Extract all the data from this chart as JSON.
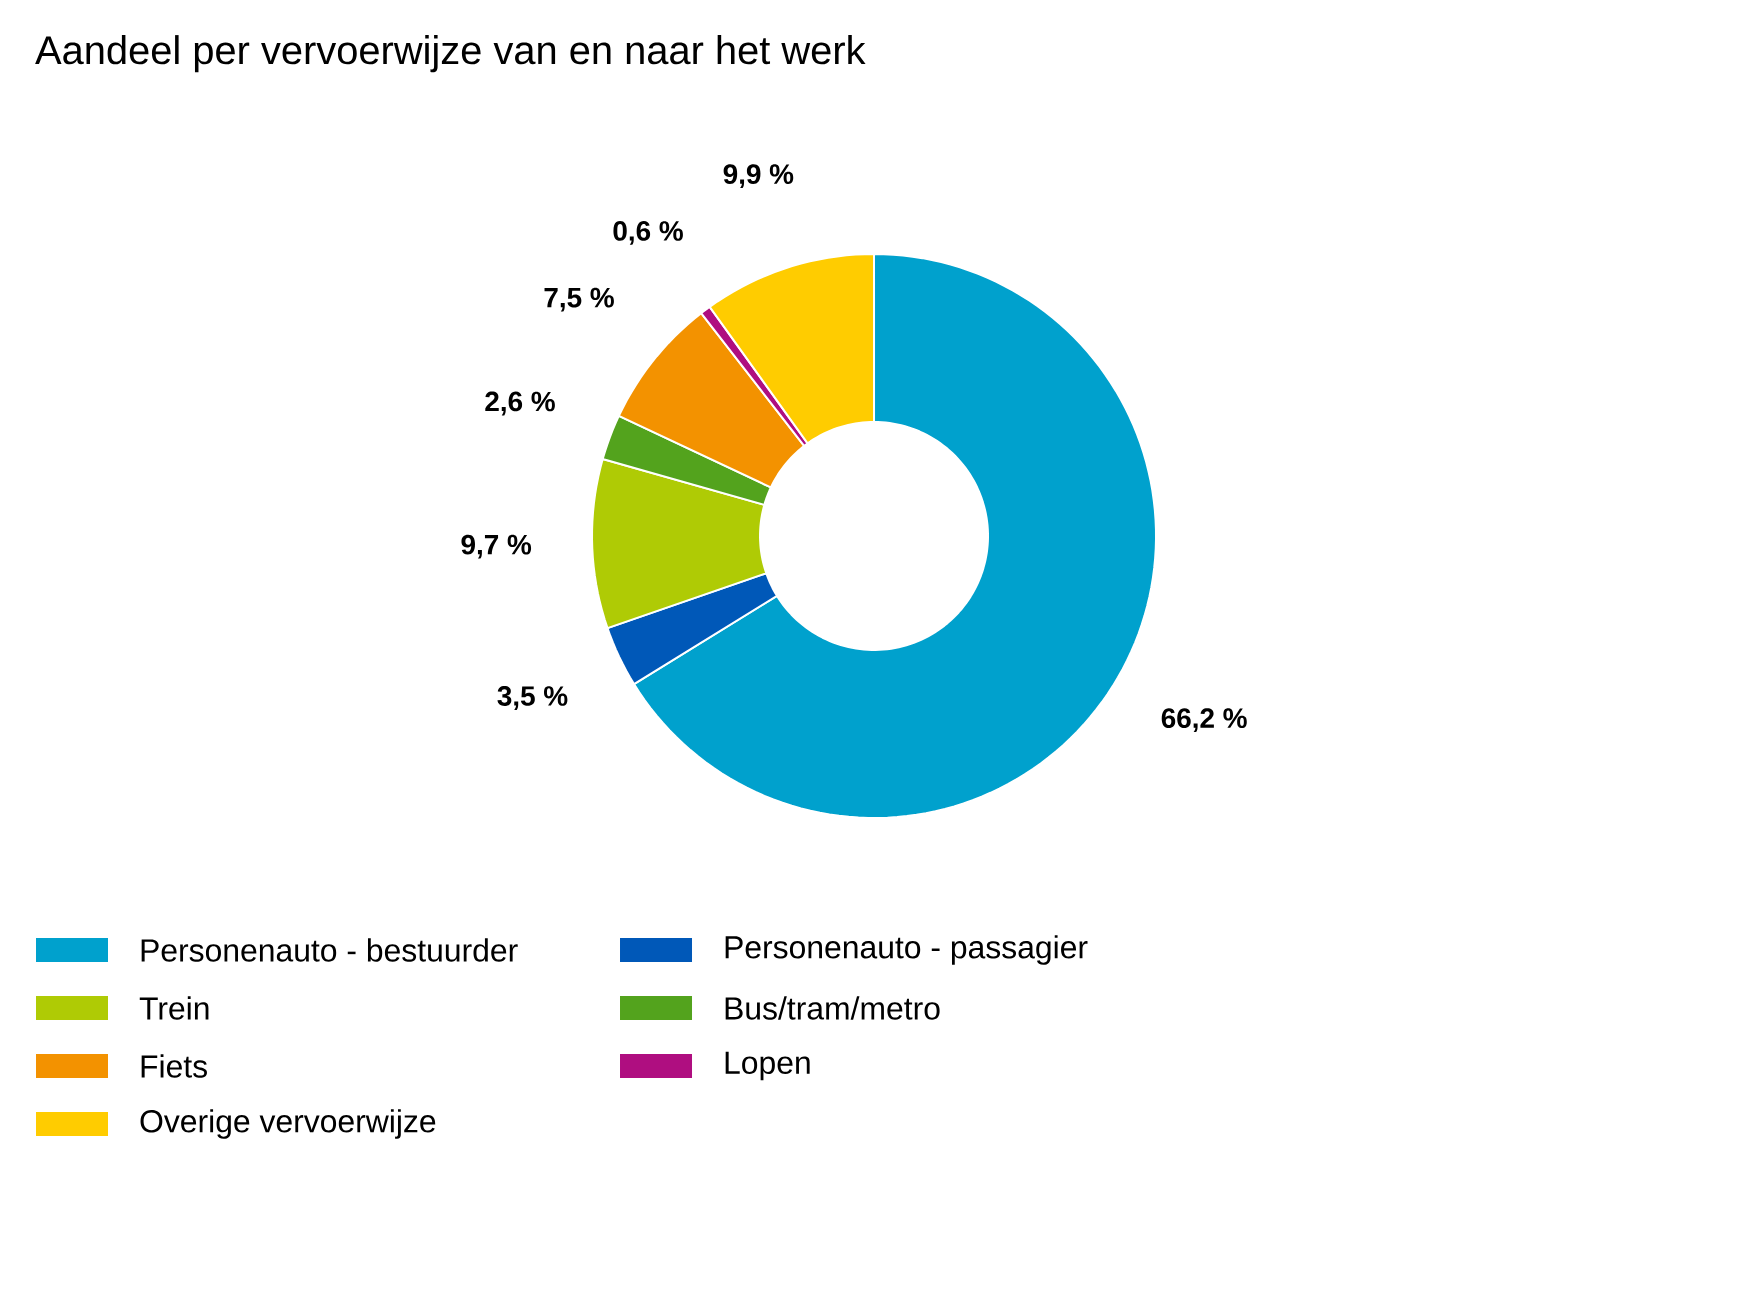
{
  "chart_data": {
    "type": "donut",
    "title": "Aandeel per vervoerwijze van en naar het werk",
    "categories": [
      "Personenauto - bestuurder",
      "Personenauto - passagier",
      "Trein",
      "Bus/tram/metro",
      "Fiets",
      "Lopen",
      "Overige vervoerwijze"
    ],
    "values": [
      66.2,
      3.5,
      9.7,
      2.6,
      7.5,
      0.6,
      9.9
    ],
    "value_labels": [
      "66,2 %",
      "3,5 %",
      "9,7 %",
      "2,6 %",
      "7,5 %",
      "0,6 %",
      "9,9 %"
    ],
    "colors": [
      "#00a1cd",
      "#0058b8",
      "#afcb05",
      "#53a31d",
      "#f39200",
      "#af0e80",
      "#ffcc00"
    ],
    "legend": "bottom"
  }
}
